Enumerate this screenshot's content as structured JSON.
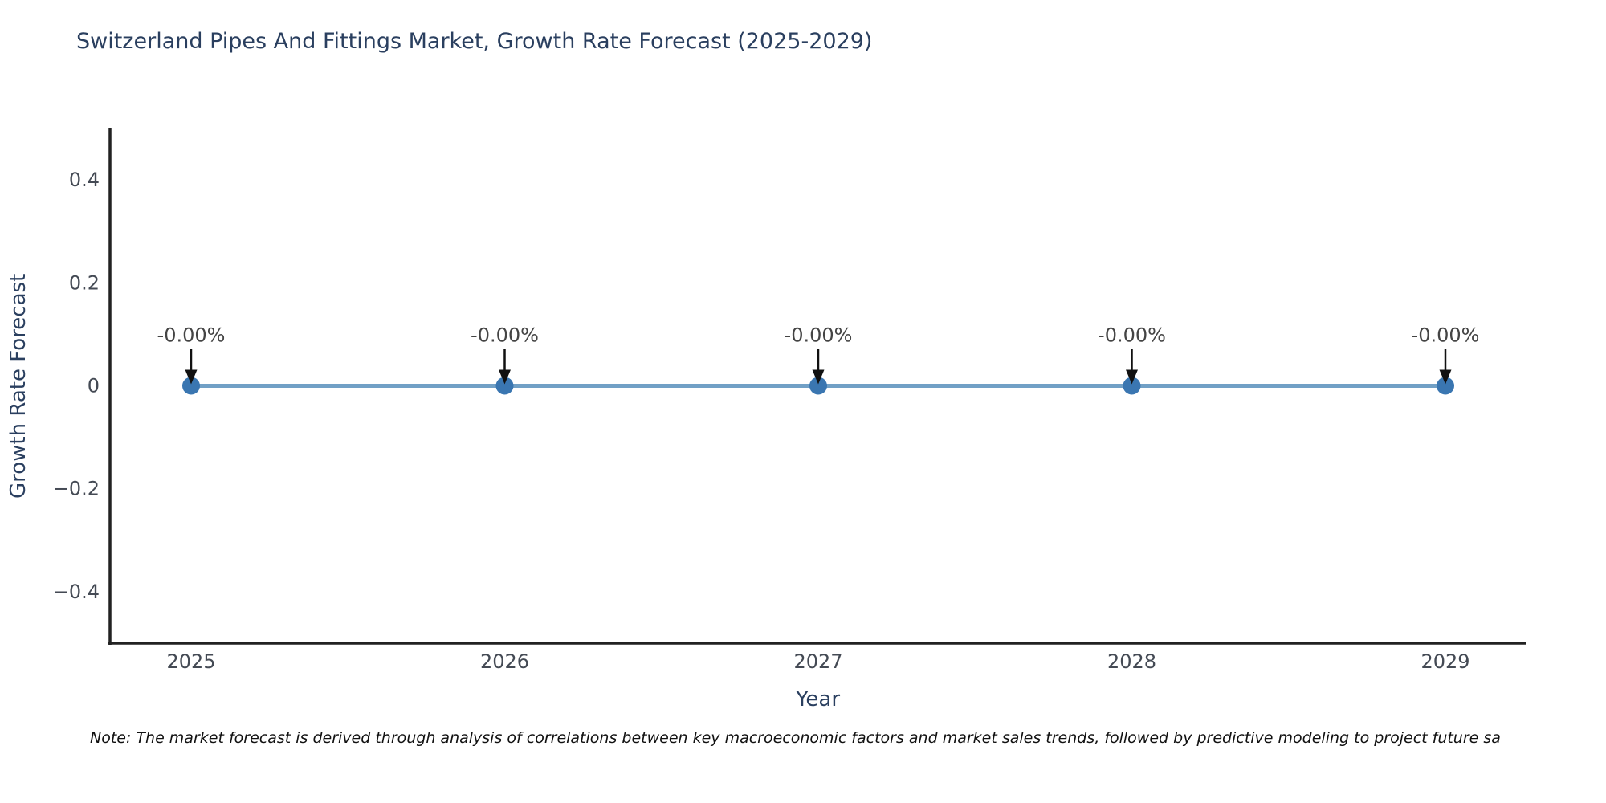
{
  "note": "Note: The market forecast is derived through analysis of correlations between key macroeconomic factors and market sales trends, followed by predictive modeling to project future sa",
  "chart_data": {
    "type": "line",
    "title": "Switzerland Pipes And Fittings Market, Growth Rate Forecast (2025-2029)",
    "xlabel": "Year",
    "ylabel": "Growth Rate Forecast",
    "x": [
      2025,
      2026,
      2027,
      2028,
      2029
    ],
    "values": [
      0,
      0,
      0,
      0,
      0
    ],
    "point_labels": [
      "-0.00%",
      "-0.00%",
      "-0.00%",
      "-0.00%",
      "-0.00%"
    ],
    "xticklabels": [
      "2025",
      "2026",
      "2027",
      "2028",
      "2029"
    ],
    "yticks": [
      0.4,
      0.2,
      0,
      -0.2,
      -0.4
    ],
    "yticklabels": [
      "0.4",
      "0.2",
      "0",
      "−0.2",
      "−0.4"
    ],
    "ylim": [
      -0.5,
      0.5
    ],
    "grid": false,
    "legend": null,
    "colors": {
      "line": "#71a0c6",
      "marker": "#3a76b1",
      "axis": "#222222",
      "tick_text": "#444a54",
      "title_text": "#2a3f5f",
      "annotation_text": "#444444",
      "arrow": "#111111",
      "note_text": "#111111",
      "background": "#ffffff"
    }
  }
}
